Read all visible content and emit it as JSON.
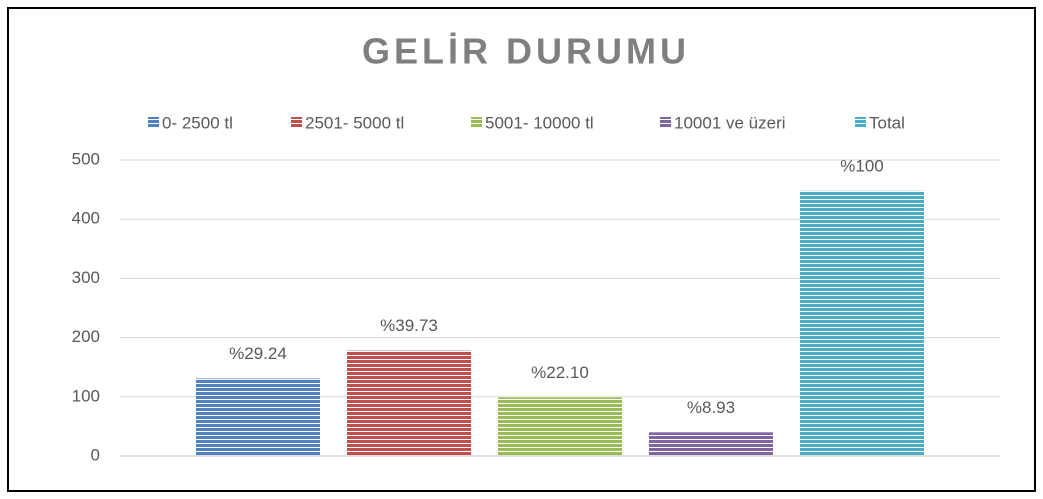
{
  "chart_data": {
    "type": "bar",
    "title": "GELİR DURUMU",
    "categories": [
      null
    ],
    "series": [
      {
        "name": "0- 2500 tl",
        "color": "#4f81bd",
        "values": [
          131
        ],
        "data_labels": [
          "%29.24"
        ]
      },
      {
        "name": "2501- 5000 tl",
        "color": "#c0504d",
        "values": [
          178
        ],
        "data_labels": [
          "%39.73"
        ]
      },
      {
        "name": "5001- 10000 tl",
        "color": "#9bbb59",
        "values": [
          99
        ],
        "data_labels": [
          "%22.10"
        ]
      },
      {
        "name": "10001 ve üzeri",
        "color": "#8064a2",
        "values": [
          40
        ],
        "data_labels": [
          "%8.93"
        ]
      },
      {
        "name": "Total",
        "color": "#4bacc6",
        "values": [
          448
        ],
        "data_labels": [
          "%100"
        ]
      }
    ],
    "ylim": [
      0,
      500
    ],
    "yticks": [
      0,
      100,
      200,
      300,
      400,
      500
    ],
    "grid": true,
    "legend": "top"
  }
}
